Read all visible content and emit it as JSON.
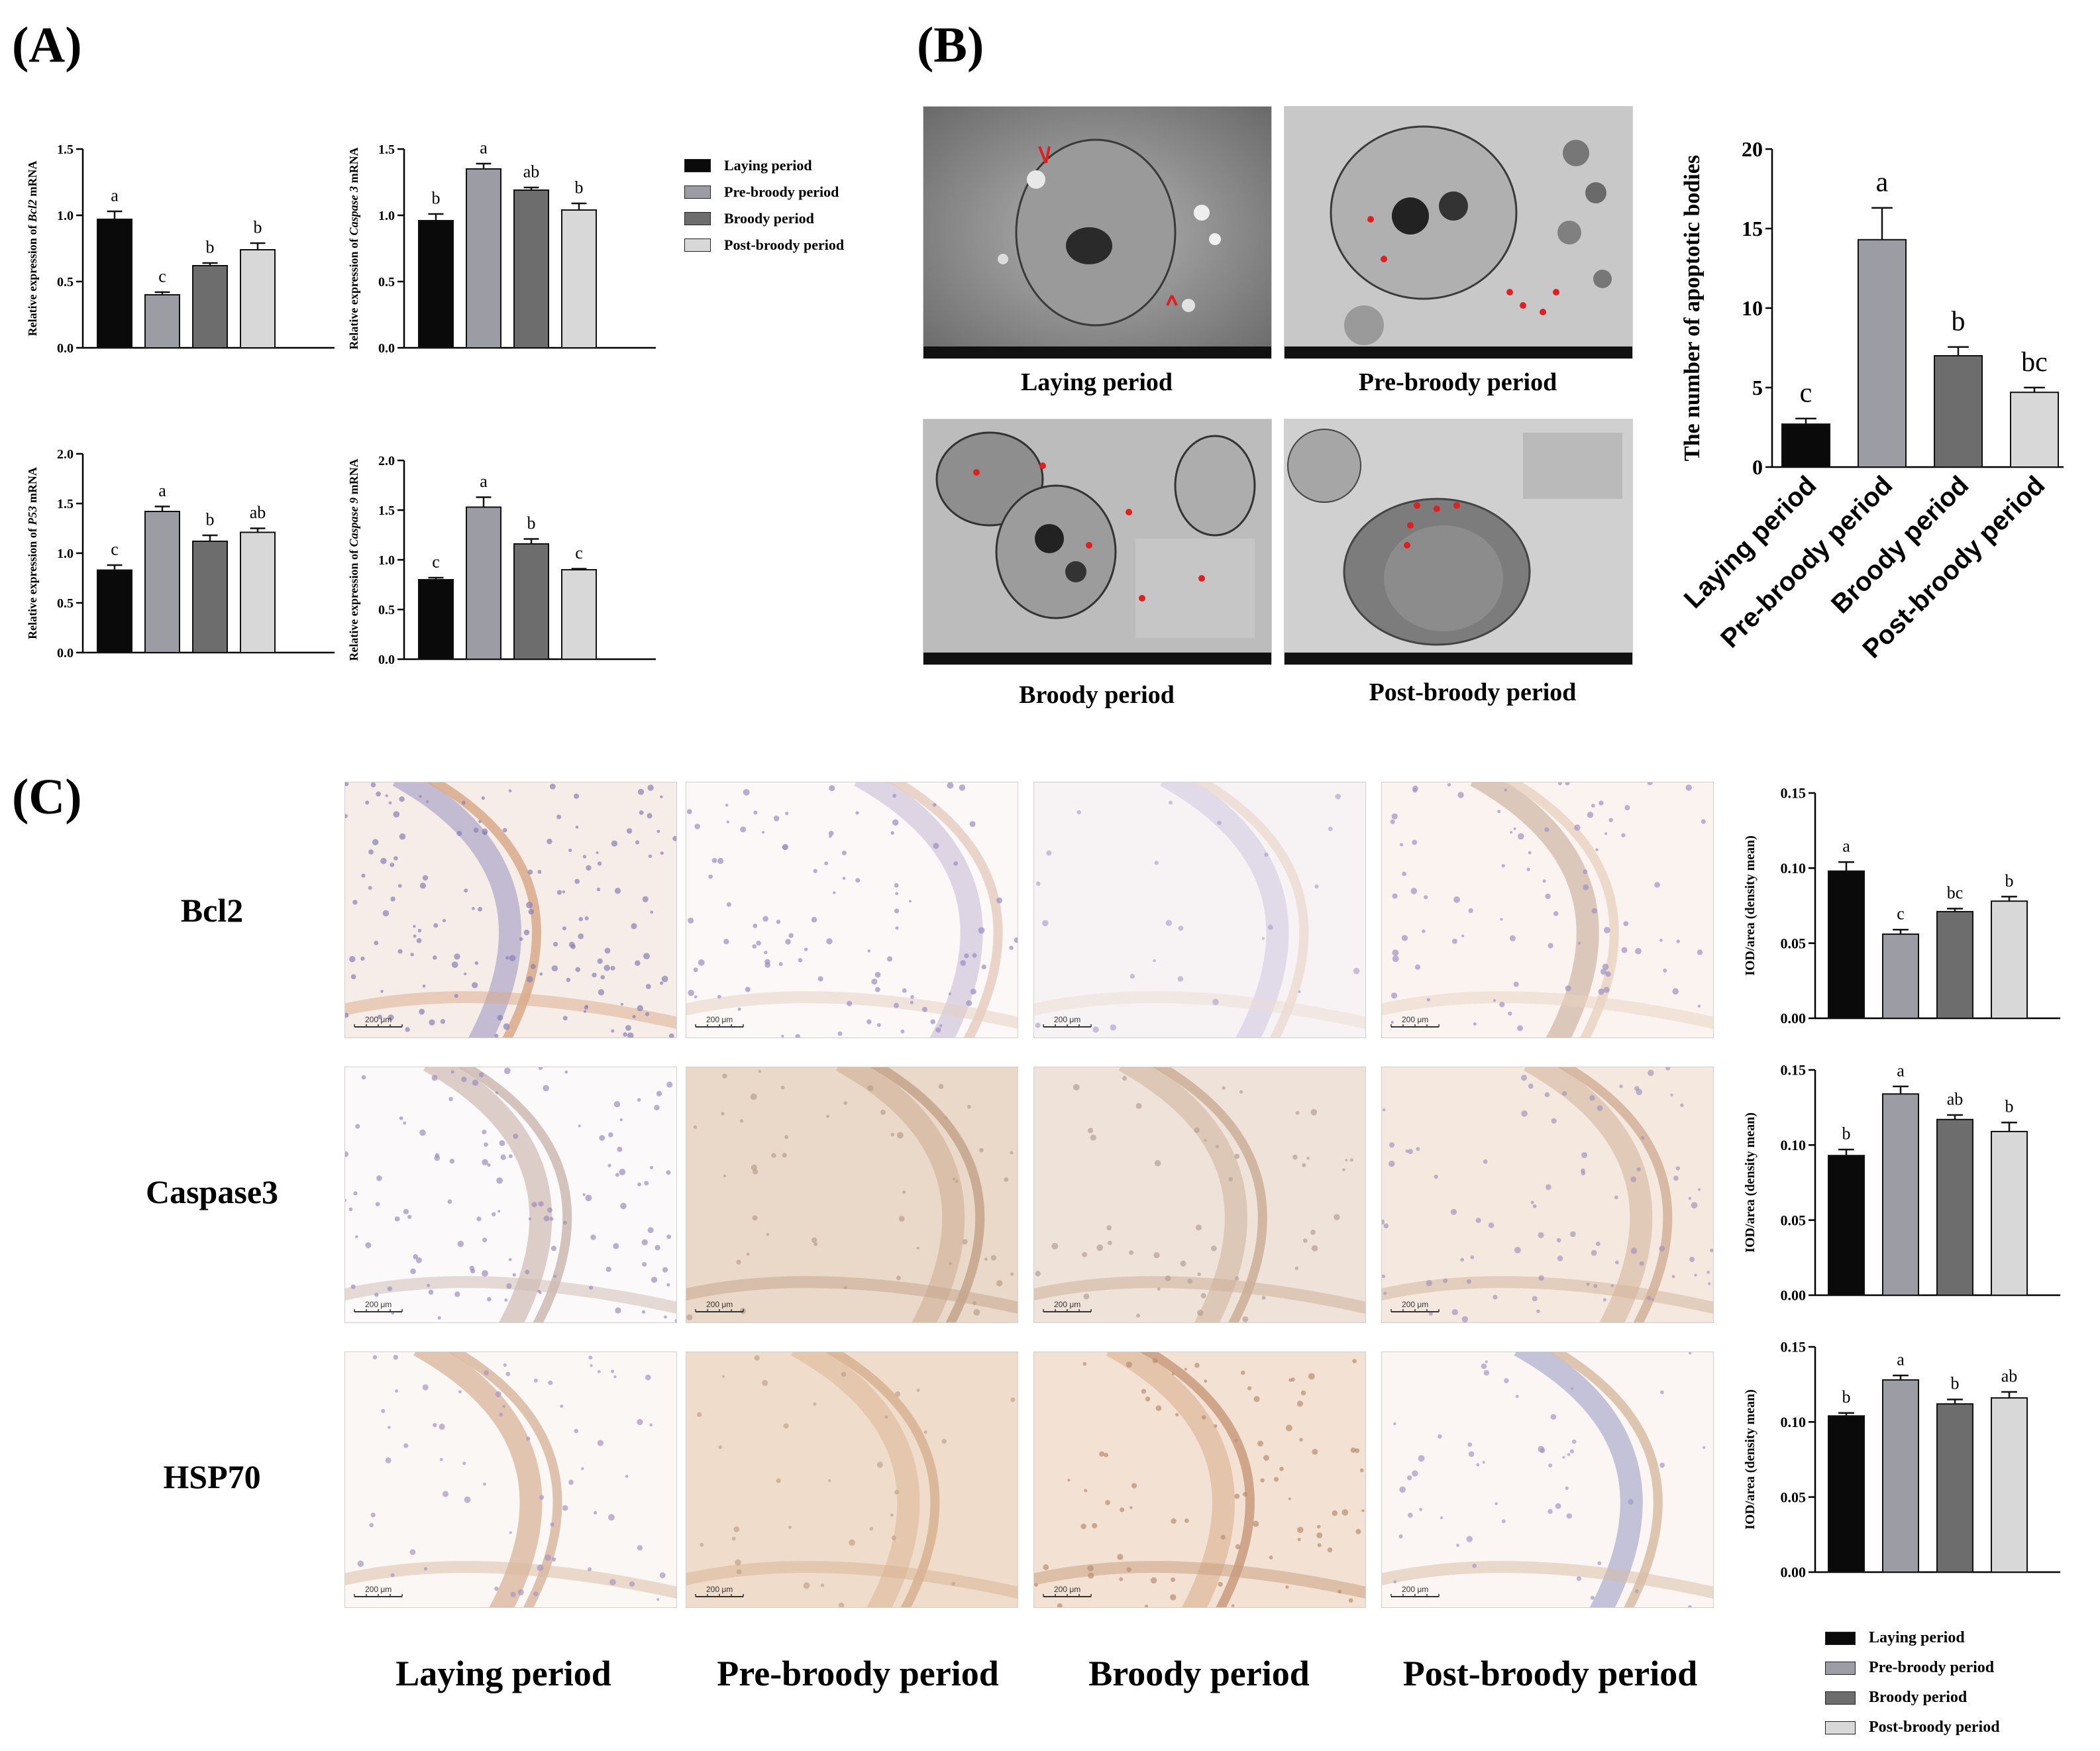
{
  "panels": {
    "A": "(A)",
    "B": "(B)",
    "C": "(C)"
  },
  "colors": {
    "laying": "#0a0a0a",
    "pre": "#9c9ca4",
    "broody": "#6d6d6d",
    "post": "#d8d8d8"
  },
  "legend": [
    "Laying period",
    "Pre-broody period",
    "Broody period",
    "Post-broody period"
  ],
  "panel_b": {
    "captions": [
      "Laying period",
      "Pre-broody period",
      "Broody period",
      "Post-broody period"
    ]
  },
  "panel_c": {
    "rows": [
      "Bcl2",
      "Caspase3",
      "HSP70"
    ],
    "columns": [
      "Laying period",
      "Pre-broody period",
      "Broody period",
      "Post-broody period"
    ],
    "scale_bar": "200 μm"
  },
  "chart_data": [
    {
      "id": "bcl2-mrna",
      "type": "bar",
      "ylabel_pre": "Relative expression of ",
      "ylabel_gene": "Bcl2",
      "ylabel_post": " mRNA",
      "ylim": [
        0,
        1.5
      ],
      "ticks": [
        0,
        0.5,
        1.0,
        1.5
      ],
      "decimals": 1,
      "values": [
        0.97,
        0.4,
        0.62,
        0.74
      ],
      "errors": [
        0.06,
        0.02,
        0.02,
        0.05
      ],
      "letters": [
        "a",
        "c",
        "b",
        "b"
      ]
    },
    {
      "id": "casp3-mrna",
      "type": "bar",
      "ylabel_pre": "Relative expression of ",
      "ylabel_gene": "Caspase 3",
      "ylabel_post": " mRNA",
      "ylim": [
        0,
        1.5
      ],
      "ticks": [
        0,
        0.5,
        1.0,
        1.5
      ],
      "decimals": 1,
      "values": [
        0.96,
        1.35,
        1.19,
        1.04
      ],
      "errors": [
        0.05,
        0.04,
        0.02,
        0.05
      ],
      "letters": [
        "b",
        "a",
        "ab",
        "b"
      ]
    },
    {
      "id": "p53-mrna",
      "type": "bar",
      "ylabel_pre": "Relative expression of ",
      "ylabel_gene": "P53",
      "ylabel_post": " mRNA",
      "ylim": [
        0,
        2.0
      ],
      "ticks": [
        0,
        0.5,
        1.0,
        1.5,
        2.0
      ],
      "decimals": 1,
      "values": [
        0.83,
        1.42,
        1.12,
        1.21
      ],
      "errors": [
        0.05,
        0.05,
        0.06,
        0.04
      ],
      "letters": [
        "c",
        "a",
        "b",
        "ab"
      ]
    },
    {
      "id": "casp9-mrna",
      "type": "bar",
      "ylabel_pre": "Relative expression of ",
      "ylabel_gene": "Caspase 9",
      "ylabel_post": " mRNA",
      "ylim": [
        0,
        2.0
      ],
      "ticks": [
        0,
        0.5,
        1.0,
        1.5,
        2.0
      ],
      "decimals": 1,
      "values": [
        0.8,
        1.53,
        1.16,
        0.9
      ],
      "errors": [
        0.02,
        0.1,
        0.05,
        0.01
      ],
      "letters": [
        "c",
        "a",
        "b",
        "c"
      ]
    },
    {
      "id": "apoptotic-bodies",
      "type": "bar",
      "ylabel": "The number of apoptotic bodies",
      "ylim": [
        0,
        20
      ],
      "ticks": [
        0,
        5,
        10,
        15,
        20
      ],
      "decimals": 0,
      "categories": [
        "Laying period",
        "Pre-broody period",
        "Broody period",
        "Post-broody period"
      ],
      "values": [
        2.7,
        14.3,
        7.0,
        4.7
      ],
      "errors": [
        0.35,
        2.0,
        0.55,
        0.3
      ],
      "letters": [
        "c",
        "a",
        "b",
        "bc"
      ]
    },
    {
      "id": "bcl2-ihc",
      "type": "bar",
      "ylabel": "IOD/area (density mean)",
      "ylim": [
        0,
        0.15
      ],
      "ticks": [
        0,
        0.05,
        0.1,
        0.15
      ],
      "decimals": 2,
      "values": [
        0.098,
        0.056,
        0.071,
        0.078
      ],
      "errors": [
        0.006,
        0.003,
        0.002,
        0.003
      ],
      "letters": [
        "a",
        "c",
        "bc",
        "b"
      ]
    },
    {
      "id": "casp3-ihc",
      "type": "bar",
      "ylabel": "IOD/area (density mean)",
      "ylim": [
        0,
        0.15
      ],
      "ticks": [
        0,
        0.05,
        0.1,
        0.15
      ],
      "decimals": 2,
      "values": [
        0.093,
        0.134,
        0.117,
        0.109
      ],
      "errors": [
        0.004,
        0.005,
        0.003,
        0.006
      ],
      "letters": [
        "b",
        "a",
        "ab",
        "b"
      ]
    },
    {
      "id": "hsp70-ihc",
      "type": "bar",
      "ylabel": "IOD/area (density mean)",
      "ylim": [
        0,
        0.15
      ],
      "ticks": [
        0,
        0.05,
        0.1,
        0.15
      ],
      "decimals": 2,
      "values": [
        0.104,
        0.128,
        0.112,
        0.116
      ],
      "errors": [
        0.002,
        0.003,
        0.003,
        0.004
      ],
      "letters": [
        "b",
        "a",
        "b",
        "ab"
      ]
    }
  ]
}
